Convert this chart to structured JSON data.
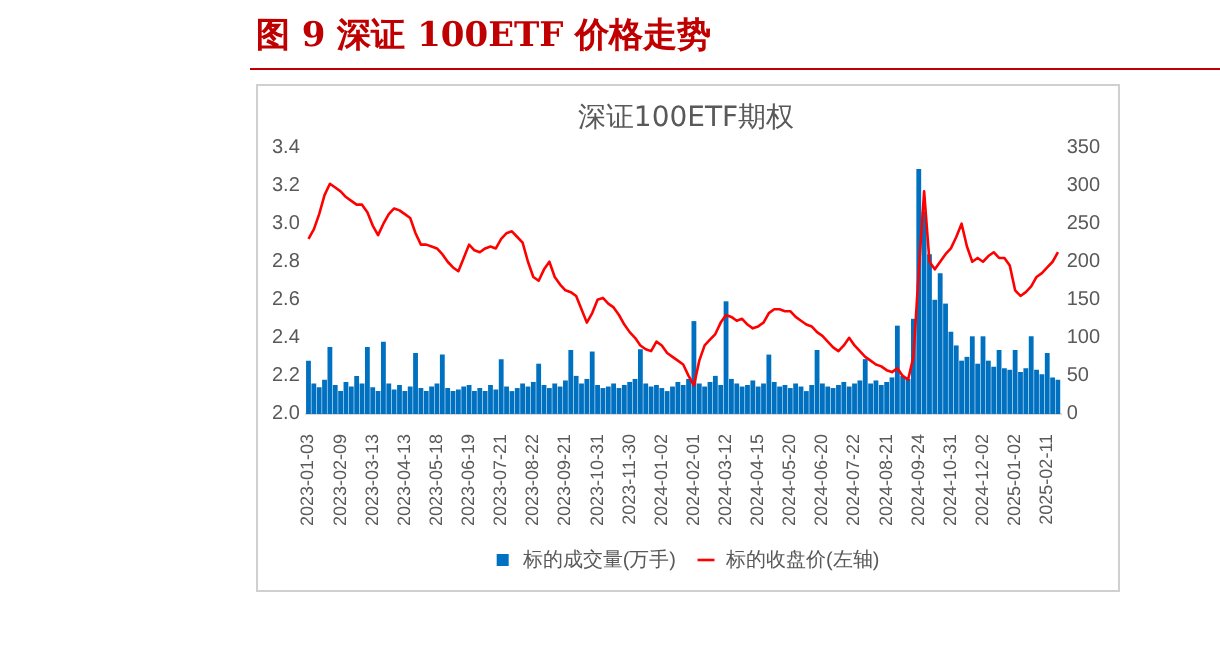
{
  "chart_data": {
    "type": "bar",
    "title": "图 9 深证 100ETF 价格走势",
    "subtitle": "深证100ETF期权",
    "categories": [
      "2023-01-03",
      null,
      null,
      null,
      null,
      null,
      "2023-02-09",
      null,
      null,
      null,
      null,
      null,
      "2023-03-13",
      null,
      null,
      null,
      null,
      null,
      "2023-04-13",
      null,
      null,
      null,
      null,
      null,
      "2023-05-18",
      null,
      null,
      null,
      null,
      null,
      "2023-06-19",
      null,
      null,
      null,
      null,
      null,
      "2023-07-21",
      null,
      null,
      null,
      null,
      null,
      "2023-08-22",
      null,
      null,
      null,
      null,
      null,
      "2023-09-21",
      null,
      null,
      null,
      null,
      null,
      "2023-10-31",
      null,
      null,
      null,
      null,
      null,
      "2023-11-30",
      null,
      null,
      null,
      null,
      null,
      "2024-01-02",
      null,
      null,
      null,
      null,
      null,
      "2024-02-01",
      null,
      null,
      null,
      null,
      null,
      "2024-03-12",
      null,
      null,
      null,
      null,
      null,
      "2024-04-15",
      null,
      null,
      null,
      null,
      null,
      "2024-05-20",
      null,
      null,
      null,
      null,
      null,
      "2024-06-20",
      null,
      null,
      null,
      null,
      null,
      "2024-07-22",
      null,
      null,
      null,
      null,
      null,
      "2024-08-21",
      null,
      null,
      null,
      null,
      null,
      "2024-09-24",
      null,
      null,
      null,
      null,
      null,
      "2024-10-31",
      null,
      null,
      null,
      null,
      null,
      "2024-12-02",
      null,
      null,
      null,
      null,
      null,
      "2025-01-02",
      null,
      null,
      null,
      null,
      null,
      "2025-02-11",
      null,
      null
    ],
    "series": [
      {
        "name": "标的成交量(万手)",
        "axis": "y2",
        "color": "#0070c0",
        "values": [
          70,
          40,
          35,
          45,
          88,
          38,
          30,
          42,
          36,
          50,
          40,
          88,
          35,
          30,
          95,
          40,
          32,
          38,
          30,
          36,
          80,
          34,
          30,
          36,
          40,
          78,
          34,
          30,
          32,
          36,
          38,
          30,
          34,
          30,
          38,
          32,
          72,
          36,
          30,
          34,
          40,
          36,
          42,
          66,
          38,
          34,
          40,
          36,
          44,
          84,
          50,
          40,
          46,
          82,
          38,
          34,
          36,
          40,
          34,
          38,
          42,
          46,
          85,
          40,
          36,
          38,
          34,
          30,
          36,
          42,
          38,
          46,
          122,
          40,
          36,
          42,
          50,
          38,
          148,
          46,
          40,
          36,
          38,
          44,
          36,
          40,
          78,
          42,
          36,
          38,
          34,
          40,
          36,
          30,
          38,
          84,
          40,
          36,
          34,
          38,
          42,
          36,
          40,
          44,
          72,
          40,
          44,
          38,
          42,
          48,
          116,
          50,
          46,
          125,
          322,
          266,
          210,
          150,
          185,
          145,
          108,
          90,
          70,
          75,
          102,
          66,
          102,
          70,
          62,
          84,
          60,
          58,
          84,
          55,
          60,
          102,
          58,
          52,
          80,
          48,
          45
        ]
      },
      {
        "name": "标的收盘价(左轴)",
        "type": "line",
        "axis": "y",
        "color": "#ff0000",
        "values": [
          2.92,
          2.97,
          3.05,
          3.15,
          3.21,
          3.19,
          3.17,
          3.14,
          3.12,
          3.1,
          3.1,
          3.06,
          2.99,
          2.94,
          3.0,
          3.05,
          3.08,
          3.07,
          3.05,
          3.03,
          2.95,
          2.89,
          2.89,
          2.88,
          2.87,
          2.84,
          2.8,
          2.77,
          2.75,
          2.82,
          2.89,
          2.86,
          2.85,
          2.87,
          2.88,
          2.87,
          2.92,
          2.95,
          2.96,
          2.93,
          2.9,
          2.8,
          2.72,
          2.7,
          2.76,
          2.8,
          2.72,
          2.68,
          2.65,
          2.64,
          2.62,
          2.55,
          2.48,
          2.53,
          2.6,
          2.61,
          2.58,
          2.56,
          2.52,
          2.47,
          2.43,
          2.4,
          2.36,
          2.34,
          2.33,
          2.38,
          2.36,
          2.32,
          2.3,
          2.28,
          2.26,
          2.2,
          2.15,
          2.28,
          2.36,
          2.39,
          2.42,
          2.48,
          2.52,
          2.51,
          2.49,
          2.5,
          2.47,
          2.45,
          2.46,
          2.48,
          2.53,
          2.55,
          2.55,
          2.54,
          2.54,
          2.51,
          2.49,
          2.47,
          2.46,
          2.43,
          2.41,
          2.38,
          2.35,
          2.33,
          2.36,
          2.4,
          2.36,
          2.33,
          2.3,
          2.28,
          2.26,
          2.25,
          2.23,
          2.22,
          2.24,
          2.2,
          2.18,
          2.3,
          2.75,
          3.17,
          2.8,
          2.76,
          2.8,
          2.84,
          2.87,
          2.93,
          3.0,
          2.88,
          2.8,
          2.82,
          2.8,
          2.83,
          2.85,
          2.82,
          2.82,
          2.78,
          2.65,
          2.62,
          2.64,
          2.67,
          2.72,
          2.74,
          2.77,
          2.8,
          2.85
        ]
      }
    ],
    "ylim": [
      2.0,
      3.4
    ],
    "yticks": [
      {
        "value": 2.0,
        "label": "2.0"
      },
      {
        "value": 2.2,
        "label": "2.2"
      },
      {
        "value": 2.4,
        "label": "2.4"
      },
      {
        "value": 2.6,
        "label": "2.6"
      },
      {
        "value": 2.8,
        "label": "2.8"
      },
      {
        "value": 3.0,
        "label": "3.0"
      },
      {
        "value": 3.2,
        "label": "3.2"
      },
      {
        "value": 3.4,
        "label": "3.4"
      }
    ],
    "y2lim": [
      0,
      350
    ],
    "y2ticks": [
      0,
      50,
      100,
      150,
      200,
      250,
      300,
      350
    ],
    "grid": false,
    "legend": "bottom"
  }
}
